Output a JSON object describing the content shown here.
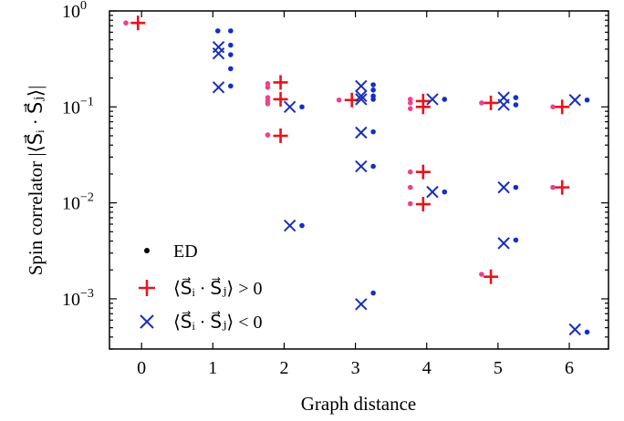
{
  "chart_data": {
    "type": "scatter",
    "xlabel": "Graph distance",
    "ylabel": "Spin correlator |⟨S⃗ᵢ · S⃗ⱼ⟩|",
    "x_ticks": [
      "0",
      "1",
      "2",
      "3",
      "4",
      "5",
      "6"
    ],
    "xlim": [
      -0.45,
      6.55
    ],
    "yscale": "log",
    "ylim": [
      0.0003,
      1.0
    ],
    "y_ticks": [
      {
        "value": 1,
        "mantissa": "10",
        "exponent": "0"
      },
      {
        "value": 0.1,
        "mantissa": "10",
        "exponent": "−1"
      },
      {
        "value": 0.01,
        "mantissa": "10",
        "exponent": "−2"
      },
      {
        "value": 0.001,
        "mantissa": "10",
        "exponent": "−3"
      }
    ],
    "legend": {
      "position": "lower-left",
      "entries": [
        {
          "key": "ed",
          "label": "ED",
          "marker": "dot"
        },
        {
          "key": "pos",
          "label": "⟨S⃗ᵢ · S⃗ⱼ⟩ > 0",
          "marker": "plus"
        },
        {
          "key": "neg",
          "label": "⟨S⃗ᵢ · S⃗ⱼ⟩ < 0",
          "marker": "cross"
        }
      ]
    },
    "colors": {
      "positive": "#e8141c",
      "negative": "#1a2fb8",
      "ed_positive": "#f0408a",
      "ed_negative": "#1030c8"
    },
    "series": [
      {
        "name": "⟨S⃗ᵢ · S⃗ⱼ⟩ > 0",
        "marker": "plus",
        "points": [
          {
            "x": -0.05,
            "y": 0.75
          },
          {
            "x": 1.95,
            "y": 0.18
          },
          {
            "x": 1.95,
            "y": 0.12
          },
          {
            "x": 1.95,
            "y": 0.05
          },
          {
            "x": 2.95,
            "y": 0.118
          },
          {
            "x": 3.95,
            "y": 0.115
          },
          {
            "x": 3.95,
            "y": 0.1
          },
          {
            "x": 3.95,
            "y": 0.021
          },
          {
            "x": 3.95,
            "y": 0.0097
          },
          {
            "x": 4.9,
            "y": 0.11
          },
          {
            "x": 4.9,
            "y": 0.0017
          },
          {
            "x": 5.9,
            "y": 0.1
          },
          {
            "x": 5.9,
            "y": 0.0145
          }
        ]
      },
      {
        "name": "⟨S⃗ᵢ · S⃗ⱼ⟩ < 0",
        "marker": "cross",
        "points": [
          {
            "x": 1.08,
            "y": 0.42
          },
          {
            "x": 1.08,
            "y": 0.36
          },
          {
            "x": 1.08,
            "y": 0.16
          },
          {
            "x": 2.08,
            "y": 0.1
          },
          {
            "x": 2.08,
            "y": 0.0058
          },
          {
            "x": 3.08,
            "y": 0.165
          },
          {
            "x": 3.08,
            "y": 0.13
          },
          {
            "x": 3.08,
            "y": 0.12
          },
          {
            "x": 3.08,
            "y": 0.054
          },
          {
            "x": 3.08,
            "y": 0.024
          },
          {
            "x": 3.08,
            "y": 0.00088
          },
          {
            "x": 4.08,
            "y": 0.12
          },
          {
            "x": 4.08,
            "y": 0.013
          },
          {
            "x": 5.08,
            "y": 0.125
          },
          {
            "x": 5.08,
            "y": 0.105
          },
          {
            "x": 5.08,
            "y": 0.0145
          },
          {
            "x": 5.08,
            "y": 0.0038
          },
          {
            "x": 6.08,
            "y": 0.118
          },
          {
            "x": 6.08,
            "y": 0.00048
          }
        ]
      },
      {
        "name": "ED",
        "marker": "dot",
        "points": [
          {
            "x": -0.22,
            "y": 0.75,
            "sign": "positive"
          },
          {
            "x": 1.07,
            "y": 0.62,
            "sign": "negative"
          },
          {
            "x": 1.25,
            "y": 0.62,
            "sign": "negative"
          },
          {
            "x": 1.25,
            "y": 0.44,
            "sign": "negative"
          },
          {
            "x": 1.25,
            "y": 0.35,
            "sign": "negative"
          },
          {
            "x": 1.25,
            "y": 0.25,
            "sign": "negative"
          },
          {
            "x": 1.25,
            "y": 0.165,
            "sign": "negative"
          },
          {
            "x": 1.77,
            "y": 0.175,
            "sign": "positive"
          },
          {
            "x": 1.77,
            "y": 0.16,
            "sign": "positive"
          },
          {
            "x": 1.77,
            "y": 0.125,
            "sign": "positive"
          },
          {
            "x": 1.77,
            "y": 0.115,
            "sign": "positive"
          },
          {
            "x": 1.77,
            "y": 0.108,
            "sign": "positive"
          },
          {
            "x": 1.77,
            "y": 0.051,
            "sign": "positive"
          },
          {
            "x": 2.25,
            "y": 0.1,
            "sign": "negative"
          },
          {
            "x": 2.25,
            "y": 0.0058,
            "sign": "negative"
          },
          {
            "x": 2.77,
            "y": 0.118,
            "sign": "positive"
          },
          {
            "x": 3.25,
            "y": 0.17,
            "sign": "negative"
          },
          {
            "x": 3.25,
            "y": 0.15,
            "sign": "negative"
          },
          {
            "x": 3.25,
            "y": 0.13,
            "sign": "negative"
          },
          {
            "x": 3.25,
            "y": 0.12,
            "sign": "negative"
          },
          {
            "x": 3.25,
            "y": 0.055,
            "sign": "negative"
          },
          {
            "x": 3.25,
            "y": 0.024,
            "sign": "negative"
          },
          {
            "x": 3.25,
            "y": 0.00115,
            "sign": "negative"
          },
          {
            "x": 3.77,
            "y": 0.12,
            "sign": "positive"
          },
          {
            "x": 3.77,
            "y": 0.11,
            "sign": "positive"
          },
          {
            "x": 3.77,
            "y": 0.096,
            "sign": "positive"
          },
          {
            "x": 3.77,
            "y": 0.021,
            "sign": "positive"
          },
          {
            "x": 3.77,
            "y": 0.0145,
            "sign": "positive"
          },
          {
            "x": 3.77,
            "y": 0.0098,
            "sign": "positive"
          },
          {
            "x": 4.25,
            "y": 0.12,
            "sign": "negative"
          },
          {
            "x": 4.25,
            "y": 0.013,
            "sign": "negative"
          },
          {
            "x": 4.77,
            "y": 0.11,
            "sign": "positive"
          },
          {
            "x": 4.77,
            "y": 0.0018,
            "sign": "positive"
          },
          {
            "x": 5.25,
            "y": 0.125,
            "sign": "negative"
          },
          {
            "x": 5.25,
            "y": 0.105,
            "sign": "negative"
          },
          {
            "x": 5.25,
            "y": 0.0145,
            "sign": "negative"
          },
          {
            "x": 5.25,
            "y": 0.0041,
            "sign": "negative"
          },
          {
            "x": 5.77,
            "y": 0.1,
            "sign": "positive"
          },
          {
            "x": 5.77,
            "y": 0.0145,
            "sign": "positive"
          },
          {
            "x": 6.25,
            "y": 0.118,
            "sign": "negative"
          },
          {
            "x": 6.25,
            "y": 0.00045,
            "sign": "negative"
          }
        ]
      }
    ]
  }
}
